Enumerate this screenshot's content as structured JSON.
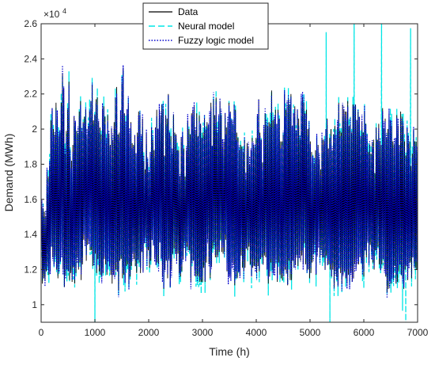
{
  "chart_data": {
    "type": "line",
    "xlabel": "Time (h)",
    "ylabel": "Demand (MWh)",
    "xlim": [
      0,
      7000
    ],
    "ylim": [
      9000,
      26000
    ],
    "x_ticks": [
      "0",
      "1000",
      "2000",
      "3000",
      "4000",
      "5000",
      "6000",
      "7000"
    ],
    "y_ticks": [
      "1",
      "1.2",
      "1.4",
      "1.6",
      "1.8",
      "2",
      "2.2",
      "2.4",
      "2.6"
    ],
    "y_exponent_base": "×10",
    "y_exponent_power": "4",
    "grid": false,
    "legend_position": "top-center",
    "series": [
      {
        "name": "Data",
        "style": "solid",
        "color": "#000000",
        "sampling_h": 24,
        "daily_peak_mwh": [
          15600,
          15500,
          15300,
          15000,
          17600,
          17300,
          17900,
          20500,
          21200,
          20000,
          19700,
          21500,
          20800,
          19600,
          19800,
          21500,
          23200,
          22300,
          18600,
          19900,
          21100,
          22700,
          18400,
          18200,
          19100,
          20700,
          20400,
          19900,
          19700,
          21000,
          21600,
          19900,
          20400,
          20700,
          21100,
          19700,
          20100,
          21000,
          21600,
          22500,
          20500,
          20800,
          21700,
          21800,
          20400,
          20100,
          19700,
          21200,
          21300,
          20700,
          19200,
          20800,
          19700,
          19100,
          20000,
          19400,
          20400,
          21800,
          22400,
          19700,
          19800,
          21000,
          22600,
          23500,
          20900,
          20100,
          21100,
          21500,
          19700,
          20400,
          19200,
          19100,
          19600,
          18600,
          19800,
          21000,
          20800,
          19300,
          20600,
          18200,
          17700,
          19800,
          18100,
          17500,
          18700,
          20100,
          19400,
          18800,
          20100,
          21100,
          20000,
          21100,
          20800,
          21400,
          21100,
          18500,
          20800,
          20600,
          22000,
          19700,
          19600,
          18600,
          20800,
          19800,
          19700,
          18800,
          18800,
          17300,
          19500,
          19600,
          18900,
          17300,
          18800,
          20500,
          20000,
          19700,
          20900,
          21100,
          21300,
          19900,
          20900,
          19600,
          20800,
          20300,
          19500,
          19800,
          20600,
          19900,
          20400,
          20200,
          20600,
          21500,
          19000,
          21700,
          20800,
          21800,
          19800,
          20400,
          21600,
          20800,
          19000,
          19300,
          20900,
          20100,
          20400,
          21500,
          21000,
          20500,
          20200,
          21400,
          21100,
          19800,
          19500,
          18800,
          19100,
          19000,
          18700,
          19400,
          17100,
          19200,
          19000,
          18000,
          18800,
          19500,
          19100,
          18900,
          19500,
          20800,
          21700,
          19800,
          19400,
          18100,
          19900,
          20900,
          20200,
          20200,
          20400,
          20300,
          22200,
          20500,
          20600,
          21100,
          20300,
          21100,
          20600,
          19300,
          19300,
          19700,
          22000,
          21100,
          21300,
          21700,
          21400,
          22000,
          20200,
          20900,
          21300,
          19800,
          21100,
          20600,
          19400,
          21600,
          21800,
          21500,
          20900,
          21100,
          20000,
          20100,
          19300,
          18700,
          18300,
          18000,
          18800,
          19500,
          19100,
          18300,
          17700,
          19500,
          19400,
          19300,
          20000,
          20600,
          18900,
          19500,
          20000,
          18800,
          19700,
          20200,
          19500,
          20100,
          21500,
          19900,
          19800,
          21400,
          21100,
          21000,
          21000,
          21600,
          20200,
          20200,
          19800,
          21400,
          21300,
          21400,
          20500,
          21000,
          20700,
          19600,
          20400,
          19800,
          21000,
          20300,
          19300,
          18700,
          19100,
          18600,
          19200,
          19400,
          17500,
          20100,
          19400,
          20300,
          19300,
          19100,
          21200,
          20000,
          20600,
          19500,
          20000,
          20900,
          20500,
          20200,
          19300,
          19100,
          19500,
          20800,
          20200,
          19100,
          21000,
          20700,
          20200,
          19300,
          18500,
          20000,
          19200,
          19300,
          17900,
          18600,
          20000,
          19300,
          19300,
          18600,
          19600,
          20500,
          21000
        ],
        "daily_trough_mwh": [
          13000,
          11200,
          11500,
          11400,
          11900,
          12200,
          11700,
          11900,
          13300,
          12700,
          12300,
          12800,
          12000,
          11500,
          12300,
          12500,
          13100,
          12000,
          11000,
          11700,
          12000,
          11900,
          11400,
          11800,
          11300,
          12100,
          11200,
          11800,
          12700,
          12000,
          12400,
          11400,
          12300,
          13700,
          13600,
          12500,
          13400,
          13700,
          13100,
          13100,
          12200,
          12500,
          12900,
          11800,
          12600,
          11900,
          11700,
          11600,
          11800,
          12600,
          12300,
          11700,
          12600,
          12200,
          11700,
          11200,
          11700,
          11600,
          12000,
          11900,
          10800,
          12500,
          12600,
          11500,
          11700,
          11300,
          12200,
          12300,
          11200,
          11600,
          12200,
          12900,
          12600,
          12200,
          11800,
          12600,
          12400,
          11800,
          13000,
          11900,
          13500,
          13800,
          12600,
          13100,
          12100,
          12500,
          13700,
          13400,
          12700,
          12300,
          12400,
          12300,
          13600,
          12700,
          11600,
          10900,
          12000,
          12500,
          11500,
          12600,
          11000,
          12000,
          12900,
          13200,
          12900,
          12500,
          12900,
          11800,
          11600,
          11900,
          12600,
          13600,
          12900,
          13300,
          13200,
          13100,
          11300,
          12500,
          12500,
          12000,
          11600,
          11700,
          11600,
          11300,
          11300,
          11300,
          12100,
          11300,
          12400,
          13800,
          12300,
          11500,
          12200,
          13200,
          13600,
          12700,
          12700,
          12800,
          13000,
          13700,
          13000,
          12900,
          13000,
          13700,
          11900,
          11600,
          11700,
          11600,
          12400,
          12300,
          11100,
          11900,
          11500,
          11900,
          11700,
          12800,
          12100,
          11900,
          12100,
          13200,
          13100,
          13300,
          12300,
          11600,
          12100,
          12200,
          12200,
          11800,
          12200,
          11900,
          12600,
          12700,
          12300,
          12800,
          12700,
          12000,
          11200,
          11600,
          12400,
          12000,
          11800,
          12100,
          12600,
          11300,
          12400,
          11700,
          11500,
          11400,
          11900,
          12000,
          11800,
          11100,
          12500,
          11400,
          11400,
          12500,
          12100,
          12300,
          12800,
          12200,
          12900,
          12500,
          12800,
          12300,
          13500,
          12300,
          12000,
          12000,
          11500,
          11800,
          12400,
          12900,
          13400,
          11700,
          13000,
          13600,
          12700,
          13100,
          12700,
          12700,
          12000,
          12800,
          12300,
          12300,
          12000,
          11600,
          12000,
          11000,
          11900,
          11600,
          11100,
          12300,
          11800,
          11200,
          11700,
          11900,
          11500,
          11200,
          11700,
          11300,
          11900,
          11300,
          11500,
          12300,
          12100,
          12600,
          12300,
          12700,
          12500,
          12000,
          11600,
          13100,
          12700,
          13700,
          12400,
          13400,
          13000,
          12400,
          12000,
          13100,
          13100,
          13300,
          12300,
          12000,
          12300,
          12600,
          12000,
          11600,
          10700,
          10900,
          11400,
          11200,
          11700,
          11500,
          12200,
          11200,
          11300,
          11900,
          12300,
          11700,
          11500,
          10900,
          12000,
          12200,
          11400,
          12400,
          12400,
          11500,
          12700,
          12400,
          12100,
          12000,
          13100,
          12300
        ]
      },
      {
        "name": "Neural model",
        "style": "dashed",
        "color": "#00e5e5",
        "follows": "Data",
        "extreme_spikes": [
          {
            "time_h": 5300,
            "demand_mwh": 26000
          },
          {
            "time_h": 5820,
            "demand_mwh": 26000
          },
          {
            "time_h": 6330,
            "demand_mwh": 26000
          },
          {
            "time_h": 6870,
            "demand_mwh": 26000
          },
          {
            "time_h": 1000,
            "demand_mwh": 9000
          },
          {
            "time_h": 5370,
            "demand_mwh": 9000
          },
          {
            "time_h": 6720,
            "demand_mwh": 9000
          },
          {
            "time_h": 6780,
            "demand_mwh": 9000
          }
        ]
      },
      {
        "name": "Fuzzy logic model",
        "style": "dotted",
        "color": "#0000cc",
        "follows": "Data"
      }
    ]
  }
}
